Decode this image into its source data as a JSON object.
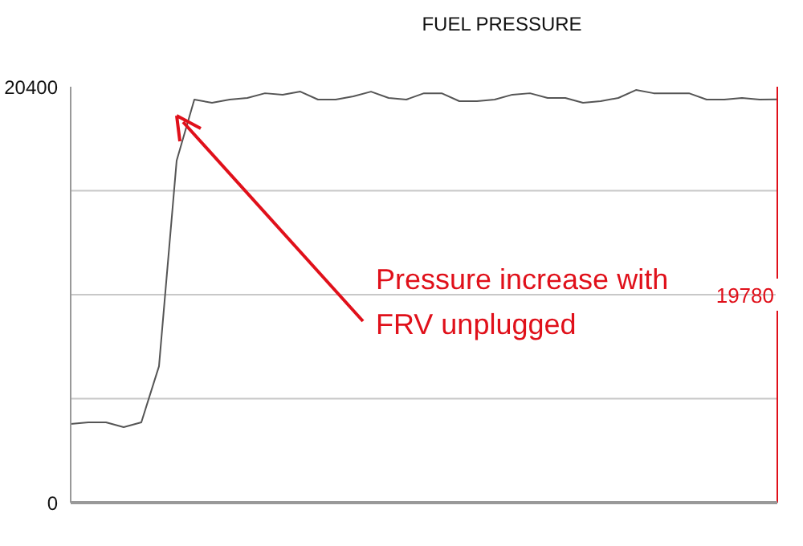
{
  "chart_data": {
    "type": "line",
    "title": "FUEL PRESSURE",
    "categories": [
      null,
      null,
      null,
      null,
      null,
      null,
      null,
      null,
      null,
      null,
      null,
      null,
      null,
      null,
      null,
      null,
      null,
      null,
      null,
      null,
      null,
      null,
      null,
      null,
      null,
      null,
      null,
      null,
      null,
      null,
      null,
      null,
      null,
      null,
      null,
      null,
      null,
      null,
      null,
      null,
      null
    ],
    "series": [
      {
        "color": "#555555",
        "values": [
          3860,
          3940,
          3940,
          3700,
          3940,
          6690,
          16780,
          19770,
          19610,
          19770,
          19850,
          20080,
          20010,
          20160,
          19770,
          19770,
          19930,
          20160,
          19850,
          19770,
          20080,
          20080,
          19690,
          19690,
          19770,
          20010,
          20080,
          19850,
          19850,
          19610,
          19690,
          19850,
          20240,
          20080,
          20080,
          20080,
          19770,
          19770,
          19850,
          19770,
          19780
        ]
      }
    ],
    "ylim": [
      0,
      20400
    ],
    "yticks": [
      0,
      {
        "value": 5100,
        "label": null
      },
      {
        "value": 10200,
        "label": null
      },
      {
        "value": 15300,
        "label": null
      },
      20400
    ],
    "grid": "y",
    "annotations": [
      "Pressure increase with FRV unplugged",
      "19780"
    ],
    "marker": "none"
  }
}
